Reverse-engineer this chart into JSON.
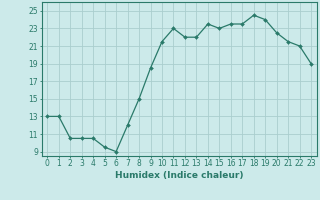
{
  "x": [
    0,
    1,
    2,
    3,
    4,
    5,
    6,
    7,
    8,
    9,
    10,
    11,
    12,
    13,
    14,
    15,
    16,
    17,
    18,
    19,
    20,
    21,
    22,
    23
  ],
  "y": [
    13,
    13,
    10.5,
    10.5,
    10.5,
    9.5,
    9.0,
    12.0,
    15.0,
    18.5,
    21.5,
    23.0,
    22.0,
    22.0,
    23.5,
    23.0,
    23.5,
    23.5,
    24.5,
    24.0,
    22.5,
    21.5,
    21.0,
    19.0
  ],
  "xlabel": "Humidex (Indice chaleur)",
  "bg_color": "#cceaea",
  "grid_color": "#aacece",
  "line_color": "#2a7a6a",
  "marker_color": "#2a7a6a",
  "ylim": [
    8.5,
    26
  ],
  "xlim": [
    -0.5,
    23.5
  ],
  "yticks": [
    9,
    11,
    13,
    15,
    17,
    19,
    21,
    23,
    25
  ],
  "xticks": [
    0,
    1,
    2,
    3,
    4,
    5,
    6,
    7,
    8,
    9,
    10,
    11,
    12,
    13,
    14,
    15,
    16,
    17,
    18,
    19,
    20,
    21,
    22,
    23
  ]
}
